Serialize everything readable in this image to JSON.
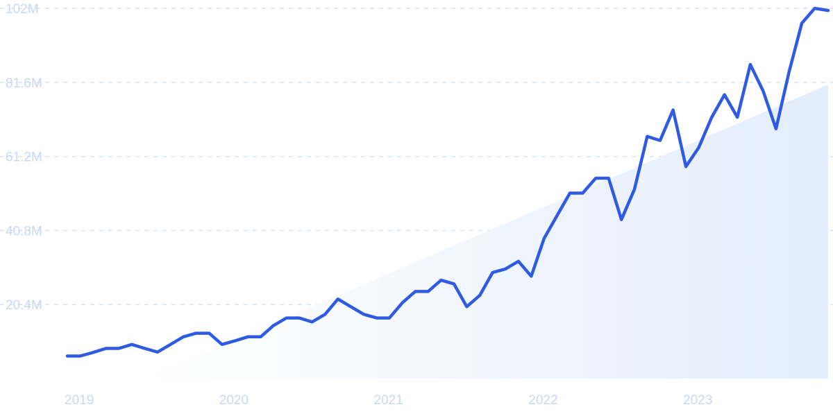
{
  "chart_data": {
    "type": "line",
    "title": "",
    "xlabel": "",
    "ylabel": "",
    "y_tick_labels": [
      "20.4M",
      "40.8M",
      "61.2M",
      "81.6M",
      "102M"
    ],
    "y_tick_values": [
      20400000,
      40800000,
      61200000,
      81600000,
      102000000
    ],
    "x_tick_labels": [
      "2019",
      "2020",
      "2021",
      "2022",
      "2023"
    ],
    "x_tick_values": [
      2019.0,
      2020.0,
      2021.0,
      2022.0,
      2023.0
    ],
    "xlim": [
      2019.0,
      2023.92
    ],
    "ylim": [
      0,
      102000000
    ],
    "grid": true,
    "legend": "none",
    "colors": {
      "line": "#2f5be3",
      "area_light": "#ffffff",
      "area_dark": "#e3edfb",
      "grid": "#d6e1f5",
      "tick_text": "#c9d8f2"
    },
    "trend_area": {
      "x": [
        2019.5,
        2023.92
      ],
      "y": [
        0,
        81000000
      ]
    },
    "series": [
      {
        "x": [
          2019.0,
          2019.083,
          2019.167,
          2019.25,
          2019.333,
          2019.417,
          2019.5,
          2019.583,
          2019.667,
          2019.75,
          2019.833,
          2019.917,
          2020.0,
          2020.083,
          2020.167,
          2020.25,
          2020.333,
          2020.417,
          2020.5,
          2020.583,
          2020.667,
          2020.75,
          2020.833,
          2020.917,
          2021.0,
          2021.083,
          2021.167,
          2021.25,
          2021.333,
          2021.417,
          2021.5,
          2021.583,
          2021.667,
          2021.75,
          2021.833,
          2021.917,
          2022.0,
          2022.083,
          2022.167,
          2022.25,
          2022.333,
          2022.417,
          2022.5,
          2022.583,
          2022.667,
          2022.75,
          2022.833,
          2022.917,
          2023.0,
          2023.083,
          2023.167,
          2023.25,
          2023.333,
          2023.417,
          2023.5,
          2023.583,
          2023.667,
          2023.75,
          2023.833,
          2023.92
        ],
        "values": [
          6200000,
          6200000,
          7200000,
          8300000,
          8300000,
          9400000,
          8300000,
          7300000,
          9400000,
          11500000,
          12500000,
          12500000,
          9400000,
          10400000,
          11500000,
          11500000,
          14600000,
          16700000,
          16700000,
          15600000,
          17700000,
          21900000,
          19800000,
          17700000,
          16700000,
          16700000,
          20900000,
          24000000,
          24000000,
          27100000,
          26100000,
          19800000,
          22900000,
          29200000,
          30200000,
          32300000,
          28200000,
          38600000,
          44900000,
          51100000,
          51100000,
          55200000,
          55200000,
          43800000,
          52100000,
          66700000,
          65600000,
          74000000,
          58400000,
          63600000,
          72000000,
          78200000,
          72000000,
          86500000,
          79200000,
          68800000,
          84400000,
          97900000,
          102000000,
          101400000
        ]
      }
    ]
  }
}
